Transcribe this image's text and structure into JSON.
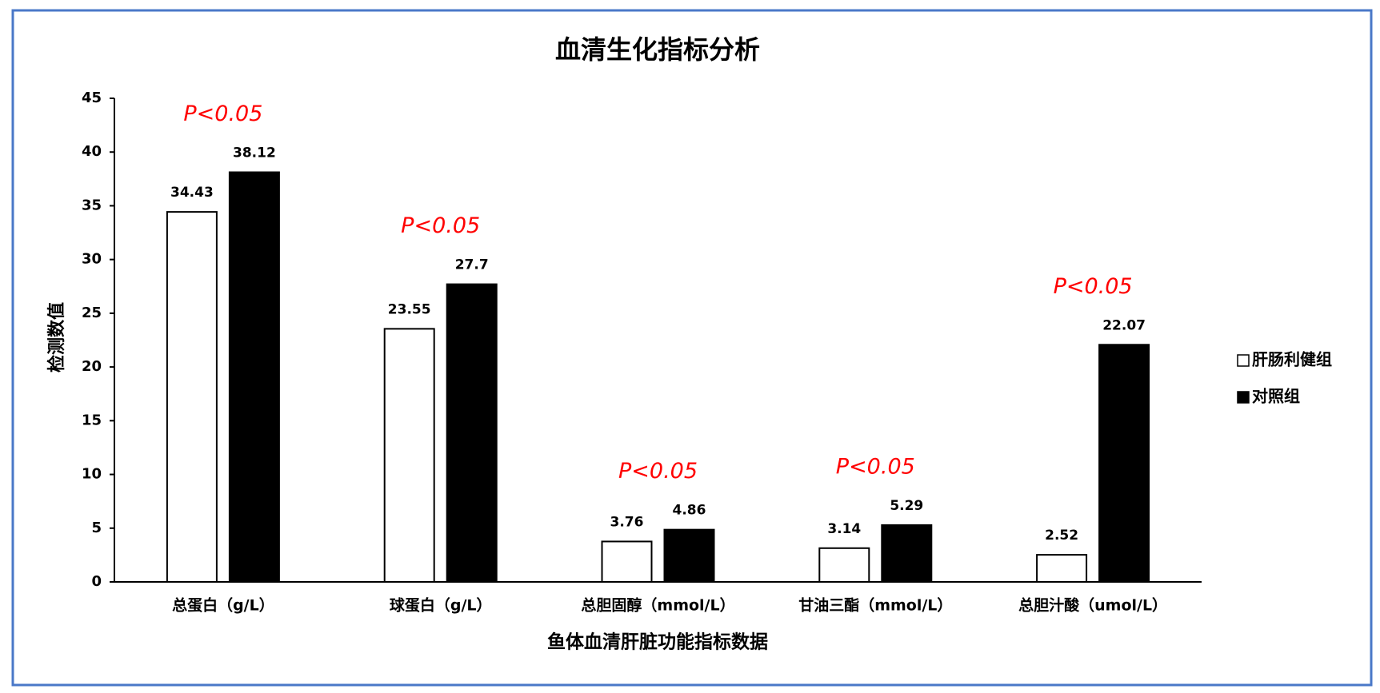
{
  "chart_data": {
    "type": "bar",
    "title": "血清生化指标分析",
    "y_label": "检测数值",
    "x_label": "鱼体血清肝脏功能指标数据",
    "categories": [
      "总蛋白（g/L）",
      "球蛋白（g/L）",
      "总胆固醇（mmol/L）",
      "甘油三酯（mmol/L）",
      "总胆汁酸（umol/L）"
    ],
    "series": [
      {
        "name": "肝肠利健组",
        "color": "#ffffff",
        "values": [
          34.43,
          23.55,
          3.76,
          3.14,
          2.52
        ]
      },
      {
        "name": "对照组",
        "color": "#000000",
        "values": [
          38.12,
          27.7,
          4.86,
          5.29,
          22.07
        ]
      }
    ],
    "annotations": [
      "P<0.05",
      "P<0.05",
      "P<0.05",
      "P<0.05",
      "P<0.05"
    ],
    "ylim": [
      0,
      45
    ],
    "yticks": [
      0,
      5,
      10,
      15,
      20,
      25,
      30,
      35,
      40,
      45
    ],
    "grid": false,
    "legend": "right"
  }
}
